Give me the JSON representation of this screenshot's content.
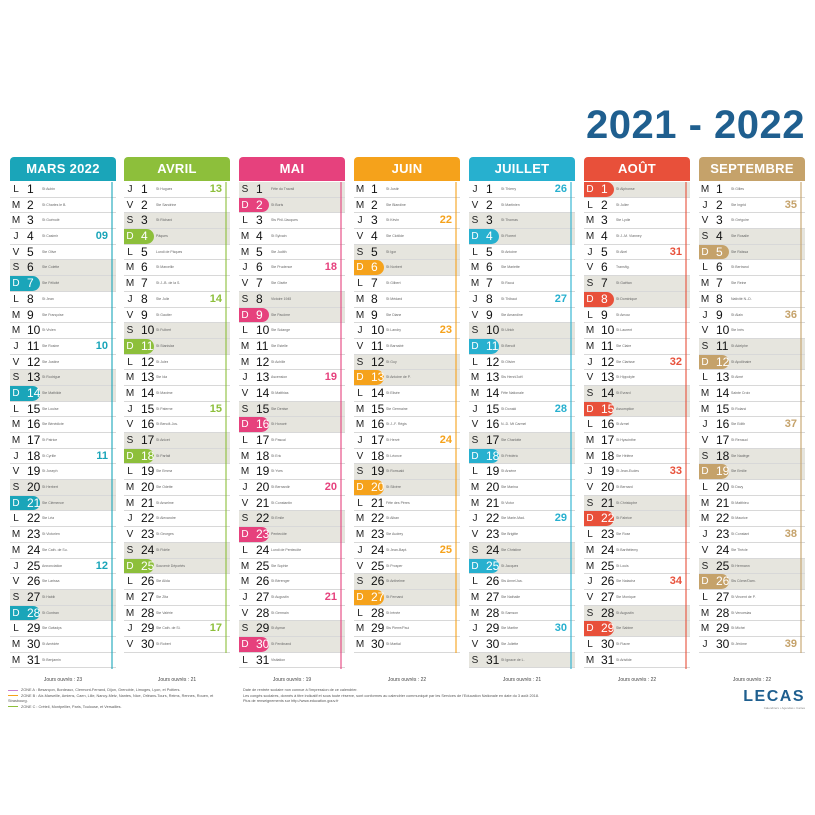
{
  "title": "2021 - 2022",
  "jours_ouvres_label": "Jours ouvrés : ",
  "colors": {
    "mars": "#1aa5b9",
    "avril": "#8dbf3b",
    "mai": "#e6417d",
    "juin": "#f5a21b",
    "juillet": "#27b0cf",
    "aout": "#e8503a",
    "septembre": "#c5a26a",
    "year": "#1f5f8f"
  },
  "months": [
    {
      "name": "MARS 2022",
      "color": "#1aa5b9",
      "start": 1,
      "days": 31,
      "jours_ouvres": "23",
      "weeks": {
        "4": "09",
        "11": "10",
        "18": "11",
        "25": "12"
      },
      "saints": {
        "1": "St Aubin",
        "2": "St Charles le B.",
        "3": "St Guénolé",
        "4": "St Casimir",
        "5": "Ste Olive",
        "6": "Ste Colette",
        "7": "Ste Félicité",
        "8": "St Jean",
        "9": "Ste Françoise",
        "10": "St Vivien",
        "11": "Ste Rosine",
        "12": "Ste Justine",
        "13": "St Rodrigue",
        "14": "Ste Mathilde",
        "15": "Ste Louise",
        "16": "Ste Bénédicte",
        "17": "St Patrice",
        "18": "St Cyrille",
        "19": "St Joseph",
        "20": "St Herbert",
        "21": "Ste Clémence",
        "22": "Ste Léa",
        "23": "St Victorien",
        "24": "Ste Cath. de Su.",
        "25": "Annonciation",
        "26": "Ste Larissa",
        "27": "St Habib",
        "28": "St Gontran",
        "29": "Ste Gwladys",
        "30": "St Amédée",
        "31": "St Benjamin"
      }
    },
    {
      "name": "AVRIL",
      "color": "#8dbf3b",
      "start": 4,
      "days": 30,
      "jours_ouvres": "21",
      "weeks": {
        "1": "13",
        "8": "14",
        "15": "15",
        "29": "17"
      },
      "saints": {
        "1": "St Hugues",
        "2": "Ste Sandrine",
        "3": "St Richard",
        "4": "Pâques",
        "5": "Lundi de Pâques",
        "6": "St Marcellin",
        "7": "St J.-B. de la S.",
        "8": "Ste Julie",
        "9": "St Gautier",
        "10": "St Fulbert",
        "11": "St Stanislas",
        "12": "St Jules",
        "13": "Ste Ida",
        "14": "St Maxime",
        "15": "St Paterne",
        "16": "St Benoît-Jos.",
        "17": "St Anicet",
        "18": "St Parfait",
        "19": "Ste Emma",
        "20": "Ste Odette",
        "21": "St Anselme",
        "22": "St Alexandre",
        "23": "St Georges",
        "24": "St Fidèle",
        "25": "Souvenir Déportés",
        "26": "Ste Alida",
        "27": "Ste Zita",
        "28": "Ste Valérie",
        "29": "Ste Cath. de Si.",
        "30": "St Robert"
      }
    },
    {
      "name": "MAI",
      "color": "#e6417d",
      "start": 6,
      "days": 31,
      "jours_ouvres": "19",
      "weeks": {
        "6": "18",
        "13": "19",
        "20": "20",
        "27": "21"
      },
      "saints": {
        "1": "Fête du Travail",
        "2": "St Boris",
        "3": "Sts Phil./Jacques",
        "4": "St Sylvain",
        "5": "Ste Judith",
        "6": "Ste Prudence",
        "7": "Ste Gisèle",
        "8": "Victoire 1945",
        "9": "Ste Pacôme",
        "10": "Ste Solange",
        "11": "Ste Estelle",
        "12": "St Achille",
        "13": "Ascension",
        "14": "St Matthias",
        "15": "Ste Denise",
        "16": "St Honoré",
        "17": "St Pascal",
        "18": "St Eric",
        "19": "St Yves",
        "20": "St Bernardin",
        "21": "St Constantin",
        "22": "St Emile",
        "23": "Pentecôte",
        "24": "Lundi de Pentecôte",
        "25": "Ste Sophie",
        "26": "St Bérenger",
        "27": "St Augustin",
        "28": "St Germain",
        "29": "St Aymar",
        "30": "St Ferdinand",
        "31": "Visitation"
      }
    },
    {
      "name": "JUIN",
      "color": "#f5a21b",
      "start": 2,
      "days": 30,
      "jours_ouvres": "22",
      "weeks": {
        "3": "22",
        "10": "23",
        "17": "24",
        "24": "25"
      },
      "saints": {
        "1": "St Justin",
        "2": "Ste Blandine",
        "3": "St Kévin",
        "4": "Ste Clotilde",
        "5": "St Igor",
        "6": "St Norbert",
        "7": "St Gilbert",
        "8": "St Médard",
        "9": "Ste Diane",
        "10": "St Landry",
        "11": "St Barnabé",
        "12": "St Guy",
        "13": "St Antoine de P.",
        "14": "St Elisée",
        "15": "Ste Germaine",
        "16": "St J.-F. Régis",
        "17": "St Hervé",
        "18": "St Léonce",
        "19": "St Romuald",
        "20": "St Silvère",
        "21": "Fête des Pères",
        "22": "St Alban",
        "23": "Ste Audrey",
        "24": "St Jean-Bapt.",
        "25": "St Prosper",
        "26": "St Anthelme",
        "27": "St Fernand",
        "28": "St Irénée",
        "29": "Sts Pierre/Paul",
        "30": "St Martial"
      }
    },
    {
      "name": "JUILLET",
      "color": "#27b0cf",
      "start": 4,
      "days": 31,
      "jours_ouvres": "21",
      "weeks": {
        "1": "26",
        "8": "27",
        "15": "28",
        "22": "29",
        "29": "30"
      },
      "saints": {
        "1": "St Thierry",
        "2": "St Martinien",
        "3": "St Thomas",
        "4": "St Florent",
        "5": "St Antoine",
        "6": "Ste Mariette",
        "7": "St Raoul",
        "8": "St Thibaut",
        "9": "Ste Amandine",
        "10": "St Ulrich",
        "11": "St Benoît",
        "12": "St Olivier",
        "13": "Sts Henri/Joël",
        "14": "Fête Nationale",
        "15": "St Donald",
        "16": "N.-D. Mt Carmel",
        "17": "Ste Charlotte",
        "18": "St Frédéric",
        "19": "St Arsène",
        "20": "Ste Marina",
        "21": "St Victor",
        "22": "Ste Marie-Mad.",
        "23": "Ste Brigitte",
        "24": "Ste Christine",
        "25": "St Jacques",
        "26": "Sts Anne/Joa.",
        "27": "Ste Nathalie",
        "28": "St Samson",
        "29": "Ste Marthe",
        "30": "Ste Juliette",
        "31": "St Ignace de L."
      }
    },
    {
      "name": "AOÛT",
      "color": "#e8503a",
      "start": 0,
      "days": 31,
      "jours_ouvres": "22",
      "weeks": {
        "5": "31",
        "12": "32",
        "19": "33",
        "26": "34"
      },
      "saints": {
        "1": "St Alphonse",
        "2": "St Julien",
        "3": "Ste Lydie",
        "4": "St J.-M. Vianney",
        "5": "St Abel",
        "6": "Transfig.",
        "7": "St Gaëtan",
        "8": "St Dominique",
        "9": "St Amour",
        "10": "St Laurent",
        "11": "Ste Claire",
        "12": "Ste Clarisse",
        "13": "St Hippolyte",
        "14": "St Evrard",
        "15": "Assomption",
        "16": "St Armel",
        "17": "St Hyacinthe",
        "18": "Ste Hélène",
        "19": "St Jean-Eudes",
        "20": "St Bernard",
        "21": "St Christophe",
        "22": "St Fabrice",
        "23": "Ste Rose",
        "24": "St Barthélemy",
        "25": "St Louis",
        "26": "Ste Natacha",
        "27": "Ste Monique",
        "28": "St Augustin",
        "29": "Ste Sabine",
        "30": "St Fiacre",
        "31": "St Aristide"
      }
    },
    {
      "name": "SEPTEMBRE",
      "color": "#c5a26a",
      "start": 3,
      "days": 30,
      "jours_ouvres": "22",
      "weeks": {
        "2": "35",
        "9": "36",
        "16": "37",
        "23": "38",
        "30": "39"
      },
      "saints": {
        "1": "St Gilles",
        "2": "Ste Ingrid",
        "3": "St Grégoire",
        "4": "Ste Rosalie",
        "5": "Ste Raïssa",
        "6": "St Bertrand",
        "7": "Ste Reine",
        "8": "Nativité N.-D.",
        "9": "St Alain",
        "10": "Ste Inès",
        "11": "St Adelphe",
        "12": "St Apollinaire",
        "13": "St Aimé",
        "14": "Sainte Croix",
        "15": "St Roland",
        "16": "Ste Edith",
        "17": "St Renaud",
        "18": "Ste Nadège",
        "19": "Ste Emilie",
        "20": "St Davy",
        "21": "St Matthieu",
        "22": "St Maurice",
        "23": "St Constant",
        "24": "Ste Thècle",
        "25": "St Hermann",
        "26": "Sts Côme/Dam.",
        "27": "St Vincent de P.",
        "28": "St Venceslas",
        "29": "St Michel",
        "30": "St Jérôme"
      }
    }
  ],
  "legend": {
    "zone_a": "ZONE A : Besançon, Bordeaux, Clermont-Ferrand, Dijon, Grenoble, Limoges, Lyon, et Poitiers.",
    "zone_b": "ZONE B : Aix-Marseille, Amiens, Caen, Lille, Nancy-Metz, Nantes, Nice, Orléans-Tours, Reims, Rennes, Rouen, et Strasbourg.",
    "zone_c": "ZONE C : Créteil, Montpellier, Paris, Toulouse, et Versailles.",
    "zone_colors": [
      "#c77fd0",
      "#f5a21b",
      "#8dbf3b"
    ]
  },
  "note": {
    "line1": "Date de rentrée scolaire non connue à l'impression de ce calendrier.",
    "line2": "Les congés scolaires, donnés à titre indicatif et sous toute réserve, sont conformes au calendrier communiqué par les Services de l'Education Nationale en date du 3 août 2018.",
    "line3": "Plus de renseignements sur http://www.education.gouv.fr"
  },
  "brand": {
    "name": "LECAS",
    "sub": "Calendriers • Agendas • Cartes"
  }
}
